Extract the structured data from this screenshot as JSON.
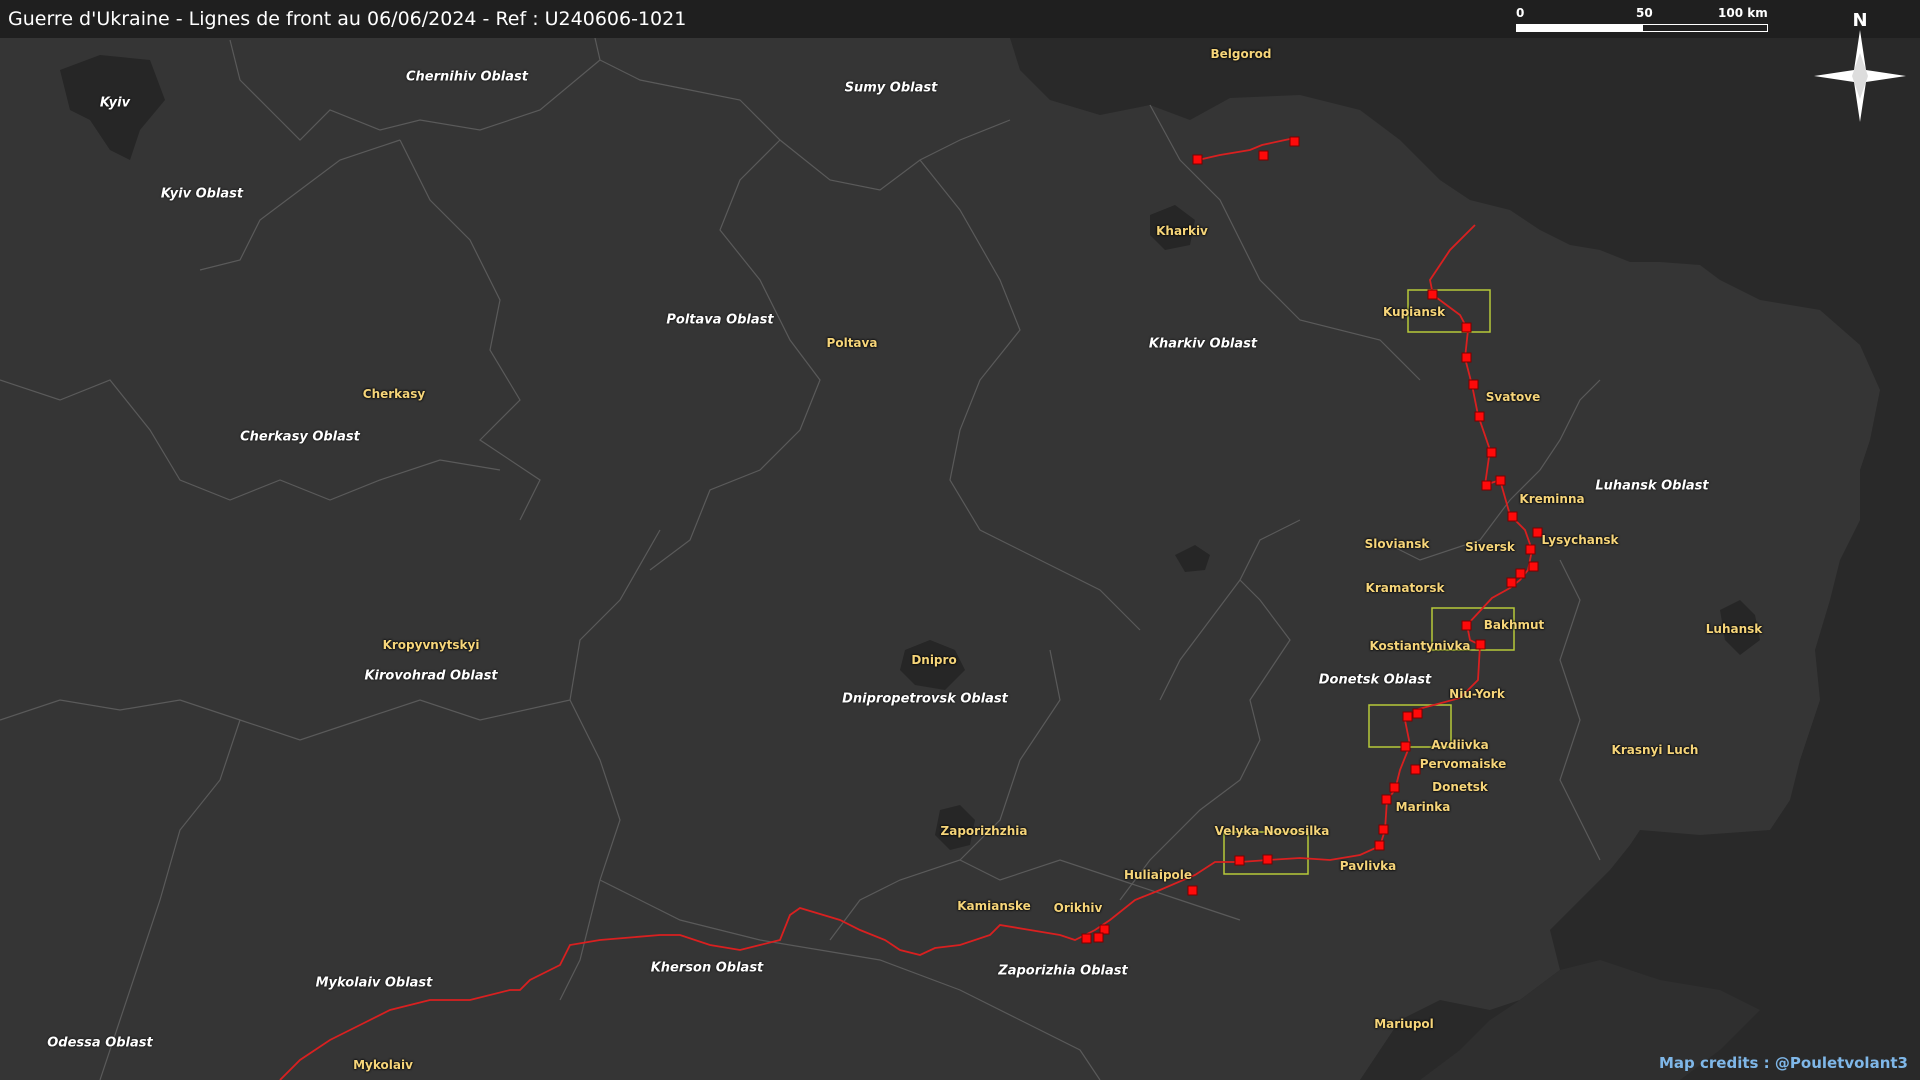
{
  "title": "Guerre d'Ukraine - Lignes de front au 06/06/2024 - Ref : U240606-1021",
  "scale": {
    "labels": [
      "0",
      "50",
      "100 km"
    ]
  },
  "north_label": "N",
  "credits": "Map credits : @Pouletvolant3",
  "colors": {
    "land": "#353535",
    "russia": "#292929",
    "front": "#d92020",
    "marker": "#ff0a0a",
    "focus_box": "#b7c93a",
    "city_label": "#f6d57a"
  },
  "oblasts": [
    "Chernihiv Oblast",
    "Sumy Oblast",
    "Kyiv Oblast",
    "Poltava Oblast",
    "Kharkiv Oblast",
    "Cherkasy Oblast",
    "Luhansk Oblast",
    "Donetsk Oblast",
    "Kirovohrad Oblast",
    "Dnipropetrovsk Oblast",
    "Kherson Oblast",
    "Zaporizhia Oblast",
    "Mykolaiv Oblast",
    "Odessa Oblast"
  ],
  "cities": [
    "Kyiv",
    "Belgorod",
    "Kharkiv",
    "Kupiansk",
    "Poltava",
    "Svatove",
    "Cherkasy",
    "Kreminna",
    "Sloviansk",
    "Siversk",
    "Lysychansk",
    "Kramatorsk",
    "Bakhmut",
    "Kostiantynivka",
    "Luhansk",
    "Kropyvnytskyi",
    "Dnipro",
    "Niu-York",
    "Avdiivka",
    "Pervomaiske",
    "Krasnyi Luch",
    "Donetsk",
    "Marinka",
    "Zaporizhzhia",
    "Velyka Novosilka",
    "Pavlivka",
    "Huliaipole",
    "Kamianske",
    "Orikhiv",
    "Mariupol",
    "Mykolaiv"
  ],
  "inset_area_note": ""
}
